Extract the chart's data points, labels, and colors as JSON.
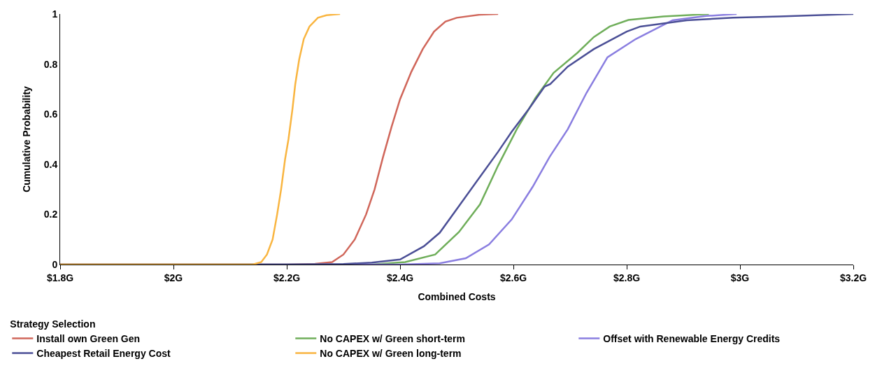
{
  "chart_data": {
    "type": "line",
    "xlabel": "Combined Costs",
    "ylabel": "Cumulative Probability",
    "legend_title": "Strategy Selection",
    "legend": "bottom",
    "marker": "none",
    "line_style": "solid",
    "xlim": [
      1.8,
      3.2
    ],
    "xticks": [
      {
        "value": 1.8,
        "label": "$1.8G"
      },
      {
        "value": 2.0,
        "label": "$2G"
      },
      {
        "value": 2.2,
        "label": "$2.2G"
      },
      {
        "value": 2.4,
        "label": "$2.4G"
      },
      {
        "value": 2.6,
        "label": "$2.6G"
      },
      {
        "value": 2.8,
        "label": "$2.8G"
      },
      {
        "value": 3.0,
        "label": "$3G"
      },
      {
        "value": 3.2,
        "label": "$3.2G"
      }
    ],
    "ylim": [
      0,
      1
    ],
    "yticks": [
      0,
      0.2,
      0.4,
      0.6,
      0.8,
      1
    ],
    "series": [
      {
        "name": "Install own Green Gen",
        "color": "#d0665a",
        "x": [
          1.8,
          2.2,
          2.25,
          2.28,
          2.3,
          2.32,
          2.34,
          2.355,
          2.37,
          2.385,
          2.4,
          2.42,
          2.44,
          2.46,
          2.48,
          2.5,
          2.54,
          2.573
        ],
        "values": [
          0,
          0,
          0.003,
          0.01,
          0.04,
          0.1,
          0.2,
          0.3,
          0.43,
          0.55,
          0.66,
          0.77,
          0.86,
          0.93,
          0.97,
          0.985,
          0.997,
          1
        ]
      },
      {
        "name": "No CAPEX w/ Green short-term",
        "color": "#6fae5a",
        "x": [
          1.8,
          2.35,
          2.409,
          2.462,
          2.504,
          2.541,
          2.573,
          2.606,
          2.639,
          2.671,
          2.713,
          2.742,
          2.77,
          2.803,
          2.865,
          2.945
        ],
        "values": [
          0,
          0,
          0.01,
          0.04,
          0.13,
          0.24,
          0.395,
          0.54,
          0.665,
          0.765,
          0.845,
          0.908,
          0.95,
          0.976,
          0.99,
          1
        ]
      },
      {
        "name": "Offset with Renewable Energy Credits",
        "color": "#8a7ee0",
        "x": [
          1.8,
          2.4,
          2.47,
          2.516,
          2.557,
          2.597,
          2.634,
          2.664,
          2.696,
          2.729,
          2.766,
          2.816,
          2.881,
          2.94,
          2.994
        ],
        "values": [
          0,
          0,
          0.005,
          0.025,
          0.08,
          0.18,
          0.31,
          0.43,
          0.54,
          0.685,
          0.827,
          0.9,
          0.975,
          0.992,
          1
        ]
      },
      {
        "name": "Cheapest Retail Energy Cost",
        "color": "#4b4f96",
        "x": [
          1.8,
          2.2,
          2.3,
          2.35,
          2.4,
          2.442,
          2.47,
          2.507,
          2.541,
          2.573,
          2.597,
          2.627,
          2.655,
          2.665,
          2.696,
          2.742,
          2.8,
          2.824,
          2.906,
          2.988,
          3.07,
          3.2
        ],
        "values": [
          0,
          0,
          0.002,
          0.008,
          0.02,
          0.073,
          0.127,
          0.243,
          0.35,
          0.45,
          0.53,
          0.62,
          0.71,
          0.72,
          0.79,
          0.86,
          0.93,
          0.95,
          0.975,
          0.985,
          0.99,
          1
        ]
      },
      {
        "name": "No CAPEX w/ Green long-term",
        "color": "#f9b540",
        "x": [
          1.8,
          2.14,
          2.155,
          2.165,
          2.175,
          2.183,
          2.19,
          2.197,
          2.203,
          2.21,
          2.215,
          2.222,
          2.23,
          2.24,
          2.255,
          2.27,
          2.294
        ],
        "values": [
          0,
          0,
          0.01,
          0.04,
          0.1,
          0.2,
          0.3,
          0.42,
          0.5,
          0.62,
          0.72,
          0.82,
          0.9,
          0.95,
          0.985,
          0.995,
          1
        ]
      }
    ]
  }
}
